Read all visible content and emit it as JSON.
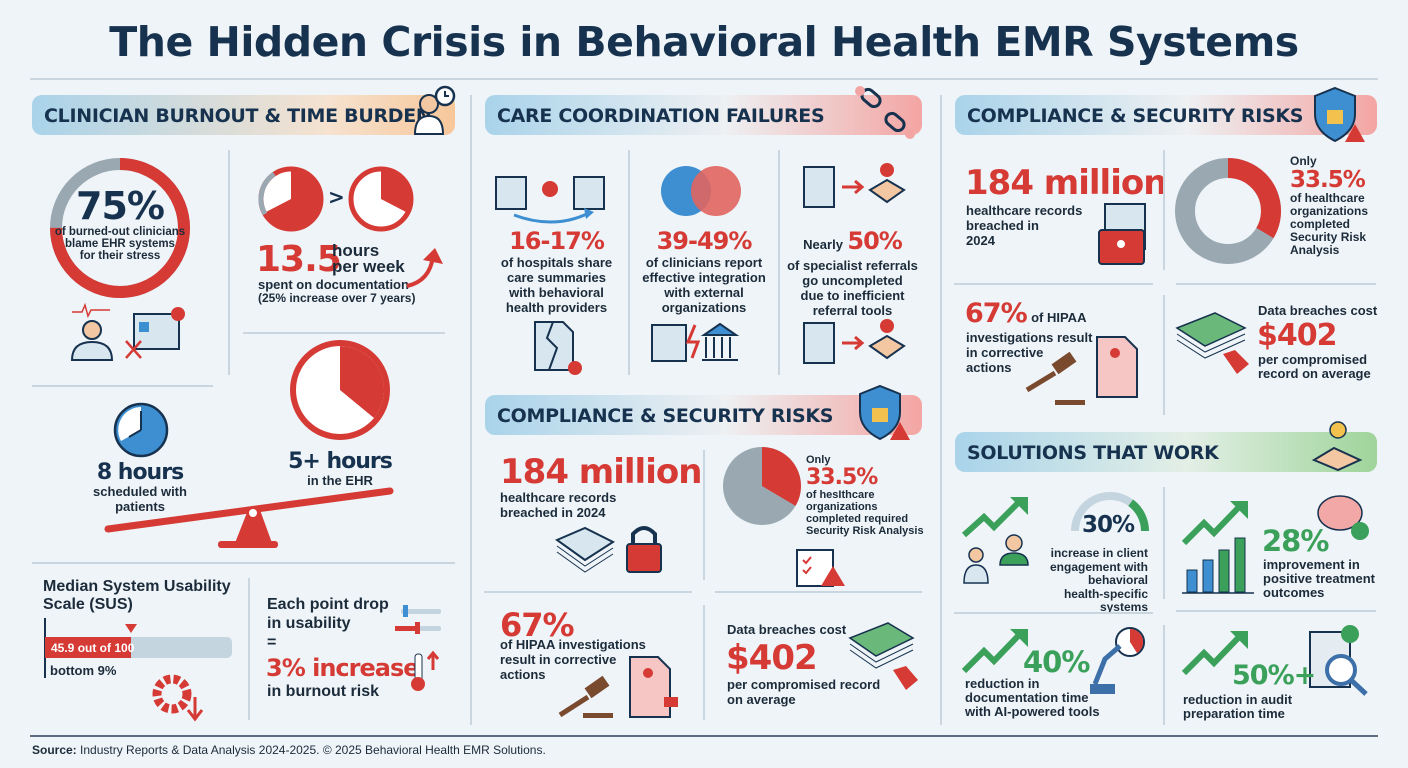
{
  "title": "The Hidden Crisis in Behavioral Health EMR Systems",
  "colors": {
    "red": "#d63a35",
    "navy": "#17324f",
    "green": "#3aa05a",
    "gray": "#9aa8b1",
    "blue": "#3d8fd1"
  },
  "burnout": {
    "header": "CLINICIAN BURNOUT & TIME BURDEN",
    "blame": {
      "value": "75%",
      "percent": 75,
      "text": [
        "of burned-out clinicians",
        "blame EHR systems",
        "for their stress"
      ]
    },
    "documentation": {
      "comparison": ">",
      "value": "13.5",
      "unit_1": "hours",
      "unit_2": "per week",
      "text": "spent on documentation",
      "note": "(25% increase over 7 years)"
    },
    "scheduled": {
      "value": "8 hours",
      "text": [
        "scheduled with",
        "patients"
      ]
    },
    "ehr": {
      "value": "5+ hours",
      "text": "in the EHR"
    },
    "sus": {
      "title": [
        "Median System Usability",
        "Scale (SUS)"
      ],
      "bar_label": "45.9 out of 100",
      "score": 45.9,
      "max": 100,
      "rank": "bottom 9%"
    },
    "usability": {
      "line1": "Each point drop",
      "line2": "in usability",
      "equals": "=",
      "value": "3% increase",
      "text": "in burnout risk"
    }
  },
  "coordination": {
    "header": "CARE COORDINATION FAILURES",
    "stats": [
      {
        "value": "16-17%",
        "text": [
          "of hospitals share",
          "care summaries",
          "with behavioral",
          "health providers"
        ]
      },
      {
        "value": "39-49%",
        "text": [
          "of clinicians report",
          "effective integration",
          "with external",
          "organizations"
        ]
      },
      {
        "prefix": "Nearly",
        "value": "50%",
        "text": [
          "of specialist referrals",
          "go uncompleted",
          "due to inefficient",
          "referral tools"
        ]
      }
    ]
  },
  "compliance_mid": {
    "header": "COMPLIANCE & SECURITY RISKS",
    "records": {
      "value": "184 million",
      "text": [
        "healthcare records",
        "breached in 2024"
      ]
    },
    "sra": {
      "prefix": "Only",
      "value": "33.5%",
      "percent": 33.5,
      "text": [
        "of hesIthcare",
        "organizations",
        "completed required",
        "Security Risk Analysis"
      ]
    },
    "hipaa": {
      "value": "67%",
      "text": [
        "of HIPAA investigations",
        "result in corrective",
        "actions"
      ]
    },
    "cost": {
      "lead": "Data breaches cost",
      "value": "$402",
      "text": [
        "per compromised record",
        "on average"
      ]
    }
  },
  "compliance_right": {
    "header": "COMPLIANCE & SECURITY RISKS",
    "records": {
      "value": "184 million",
      "text": [
        "healthcare records",
        "breached in",
        "2024"
      ]
    },
    "sra": {
      "prefix": "Only",
      "value": "33.5%",
      "percent": 33.5,
      "text": [
        "of healthcare",
        "organizations",
        "completed",
        "Security Risk",
        "Analysis"
      ]
    },
    "hipaa": {
      "value": "67%",
      "inline": "of HIPAA",
      "text": [
        "investigations result",
        "in corrective",
        "actions"
      ]
    },
    "cost": {
      "lead": "Data breaches cost",
      "value": "$402",
      "text": [
        "per compromised",
        "record on average"
      ]
    }
  },
  "solutions": {
    "header": "SOLUTIONS THAT WORK",
    "items": [
      {
        "value": "30%",
        "percent": 30,
        "text": [
          "increase in client",
          "engagement with",
          "behavioral",
          "health-specific systems"
        ]
      },
      {
        "value": "28%",
        "text": [
          "improvement in",
          "positive treatment",
          "outcomes"
        ]
      },
      {
        "value": "40%",
        "text": [
          "reduction in",
          "documentation time",
          "with AI-powered tools"
        ]
      },
      {
        "value": "50%+",
        "text": [
          "reduction in audit",
          "preparation time"
        ]
      }
    ]
  },
  "footer": {
    "label": "Source:",
    "text": " Industry Reports & Data Analysis 2024-2025. © 2025 Behavioral Health EMR Solutions."
  }
}
